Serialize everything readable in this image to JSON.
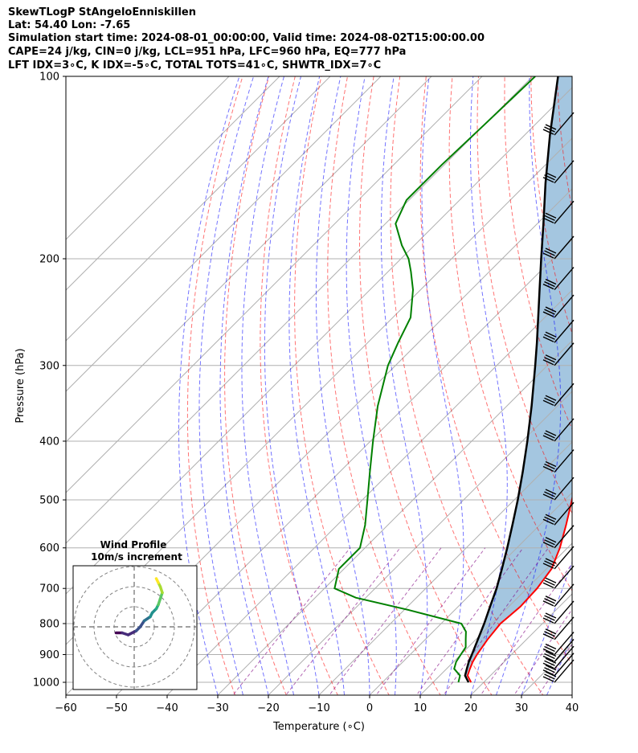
{
  "header": {
    "line1": "SkewTLogP StAngeloEnniskillen",
    "line2": "Lat: 54.40   Lon: -7.65",
    "line3": "Simulation start time: 2024-08-01_00:00:00, Valid time: 2024-08-02T15:00:00.00",
    "line4": "CAPE=24 j/kg, CIN=0 j/kg, LCL=951 hPa, LFC=960 hPa, EQ=777 hPa",
    "line5": "LFT IDX=3∘C, K IDX=-5∘C, TOTAL TOTS=41∘C, SHWTR_IDX=7∘C"
  },
  "chart_data": [
    {
      "type": "line",
      "chart": "skew-t log-p",
      "xlabel": "Temperature (∘C)",
      "ylabel": "Pressure (hPa)",
      "xlim": [
        -60,
        40
      ],
      "ylim": [
        1050,
        100
      ],
      "y_scale": "log",
      "skew_deg": 45,
      "x_ticks": [
        -60,
        -50,
        -40,
        -30,
        -20,
        -10,
        0,
        10,
        20,
        30,
        40
      ],
      "x_tick_labels": [
        "−60",
        "−50",
        "−40",
        "−30",
        "−20",
        "−10",
        "0",
        "10",
        "20",
        "30",
        "40"
      ],
      "y_ticks": [
        1000,
        900,
        800,
        700,
        600,
        500,
        400,
        300,
        200,
        100
      ],
      "y_tick_labels": [
        "1000",
        "900",
        "800",
        "700",
        "600",
        "500",
        "400",
        "300",
        "200",
        "100"
      ],
      "grid": true,
      "series": [
        {
          "role": "temperature",
          "color": "#ff0000",
          "points": [
            [
              1000,
              17.5
            ],
            [
              975,
              15.5
            ],
            [
              950,
              14.6
            ],
            [
              925,
              13.8
            ],
            [
              900,
              13.2
            ],
            [
              850,
              12.3
            ],
            [
              800,
              11.7
            ],
            [
              750,
              12.3
            ],
            [
              700,
              12.0
            ],
            [
              650,
              11.0
            ],
            [
              600,
              8.5
            ],
            [
              550,
              5.2
            ],
            [
              500,
              1.4
            ],
            [
              450,
              -3.0
            ],
            [
              400,
              -7.8
            ],
            [
              350,
              -13.7
            ],
            [
              300,
              -20.5
            ],
            [
              275,
              -24.5
            ],
            [
              250,
              -29.8
            ],
            [
              225,
              -33.0
            ],
            [
              200,
              -37.5
            ],
            [
              175,
              -40.5
            ],
            [
              150,
              -44.5
            ],
            [
              125,
              -50.5
            ],
            [
              100,
              -57.5
            ]
          ]
        },
        {
          "role": "dewpoint",
          "color": "#008000",
          "points": [
            [
              1000,
              15.0
            ],
            [
              975,
              14.0
            ],
            [
              950,
              11.5
            ],
            [
              925,
              10.5
            ],
            [
              900,
              10.0
            ],
            [
              875,
              9.5
            ],
            [
              850,
              8.0
            ],
            [
              825,
              6.5
            ],
            [
              800,
              4.0
            ],
            [
              760,
              -9.0
            ],
            [
              725,
              -22.0
            ],
            [
              700,
              -28.0
            ],
            [
              650,
              -31.0
            ],
            [
              600,
              -31.0
            ],
            [
              550,
              -34.5
            ],
            [
              500,
              -39.0
            ],
            [
              450,
              -44.0
            ],
            [
              400,
              -49.5
            ],
            [
              350,
              -55.5
            ],
            [
              300,
              -61.5
            ],
            [
              275,
              -64.0
            ],
            [
              250,
              -66.5
            ],
            [
              225,
              -71.5
            ],
            [
              210,
              -75.5
            ],
            [
              200,
              -78.5
            ],
            [
              190,
              -82.5
            ],
            [
              175,
              -88.0
            ],
            [
              160,
              -90.5
            ],
            [
              140,
              -90.5
            ],
            [
              120,
              -90.0
            ],
            [
              100,
              -89.5
            ]
          ]
        },
        {
          "role": "parcel",
          "color": "#000000",
          "points": [
            [
              1000,
              17.0
            ],
            [
              975,
              15.0
            ],
            [
              950,
              14.0
            ],
            [
              925,
              13.0
            ],
            [
              900,
              12.2
            ],
            [
              850,
              10.4
            ],
            [
              800,
              8.5
            ],
            [
              750,
              6.3
            ],
            [
              700,
              4.0
            ],
            [
              650,
              1.2
            ],
            [
              600,
              -1.9
            ],
            [
              550,
              -5.4
            ],
            [
              500,
              -9.3
            ],
            [
              450,
              -13.8
            ],
            [
              400,
              -19.0
            ],
            [
              350,
              -25.1
            ],
            [
              300,
              -32.4
            ],
            [
              275,
              -36.6
            ],
            [
              250,
              -41.3
            ],
            [
              225,
              -46.5
            ],
            [
              200,
              -52.3
            ],
            [
              175,
              -58.8
            ],
            [
              150,
              -66.4
            ],
            [
              125,
              -75.0
            ],
            [
              100,
              -85.0
            ]
          ]
        }
      ],
      "cape_fill_color": "#a4c6e0",
      "dry_adiabat_color": "#ff0000",
      "moist_adiabat_color": "#0000ff",
      "mixing_ratio_color": "#800080",
      "wind_barbs": {
        "pressures": [
          1000,
          975,
          950,
          925,
          900,
          850,
          800,
          750,
          700,
          650,
          600,
          550,
          500,
          450,
          400,
          350,
          300,
          275,
          250,
          225,
          200,
          175,
          150,
          125
        ]
      }
    },
    {
      "type": "scatter",
      "chart": "hodograph",
      "title": "Wind Profile",
      "subtitle": "10m/s increment",
      "colormap": "viridis",
      "u": [
        -9,
        -6,
        -3,
        1,
        3,
        5,
        8,
        9,
        11,
        12,
        13,
        14,
        13,
        12,
        11
      ],
      "v": [
        -3,
        -3,
        -4,
        -2,
        0,
        3,
        5,
        7,
        9,
        11,
        14,
        17,
        20,
        22,
        24
      ]
    }
  ]
}
